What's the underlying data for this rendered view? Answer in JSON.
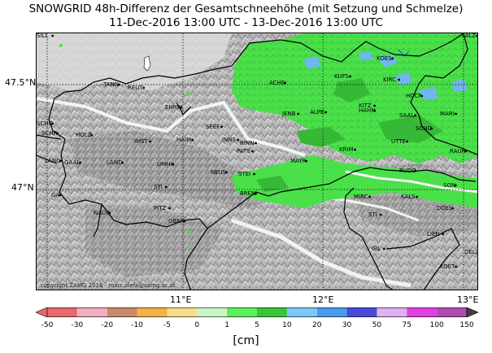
{
  "title_line1": "SNOWGRID 48h-Differenz der Gesamtschneehöhe (mit Setzung und Schmelze)",
  "title_line2": "11-Dec-2016 13:00 UTC - 13-Dec-2016 13:00 UTC",
  "lat_labels": [
    "47.5°N",
    "47°N"
  ],
  "lon_labels": [
    "11°E",
    "12°E",
    "13°E"
  ],
  "copyright": "copyright ZAMG 2016 - marc.olefs@zamg.ac.at",
  "colorbar": {
    "ticks": [
      "-50",
      "-30",
      "-20",
      "-10",
      "-5",
      "0",
      "1",
      "5",
      "10",
      "20",
      "30",
      "50",
      "75",
      "100",
      "150"
    ],
    "colors": [
      "#e8696d",
      "#f0b0c0",
      "#c98a6a",
      "#f5b04a",
      "#f5dc8a",
      "#c8f5c8",
      "#5cf05c",
      "#3ac43a",
      "#7ac8f5",
      "#4a9aee",
      "#4a4ad8",
      "#e0b0f0",
      "#e040e0",
      "#b04ab0"
    ],
    "unit": "[cm]"
  },
  "cities": [
    {
      "name": "KOES"
    },
    {
      "name": "KUFS"
    },
    {
      "name": "KIRC"
    },
    {
      "name": "HOCF"
    },
    {
      "name": "ACHE"
    },
    {
      "name": "ALPB"
    },
    {
      "name": "JENB"
    },
    {
      "name": "KITZ"
    },
    {
      "name": "HAHN"
    },
    {
      "name": "SAAL"
    },
    {
      "name": "MARI"
    },
    {
      "name": "SCHO"
    },
    {
      "name": "UTTE"
    },
    {
      "name": "RAUR"
    },
    {
      "name": "TANN"
    },
    {
      "name": "REUT"
    },
    {
      "name": "EHRW"
    },
    {
      "name": "SEEF"
    },
    {
      "name": "SCHO"
    },
    {
      "name": "SCHR"
    },
    {
      "name": "HOLZ"
    },
    {
      "name": "HAIM"
    },
    {
      "name": "IMST"
    },
    {
      "name": "INNS"
    },
    {
      "name": "RINN"
    },
    {
      "name": "PATS"
    },
    {
      "name": "MAYR"
    },
    {
      "name": "KRIM"
    },
    {
      "name": "LANG"
    },
    {
      "name": "GAAL"
    },
    {
      "name": "LAND"
    },
    {
      "name": "UMHA"
    },
    {
      "name": "NEUS"
    },
    {
      "name": "STEI"
    },
    {
      "name": "BREN"
    },
    {
      "name": "RUDO"
    },
    {
      "name": "SON"
    },
    {
      "name": "STI"
    },
    {
      "name": "GA"
    },
    {
      "name": "GIL"
    },
    {
      "name": "MIRC"
    },
    {
      "name": "KALS"
    },
    {
      "name": "DOEL"
    },
    {
      "name": "NAUD"
    },
    {
      "name": "PITZ"
    },
    {
      "name": "OBER"
    },
    {
      "name": "STI"
    },
    {
      "name": "LIEN"
    },
    {
      "name": "SILL"
    },
    {
      "name": "DELL"
    },
    {
      "name": "KOET"
    },
    {
      "name": "SALZ"
    }
  ]
}
